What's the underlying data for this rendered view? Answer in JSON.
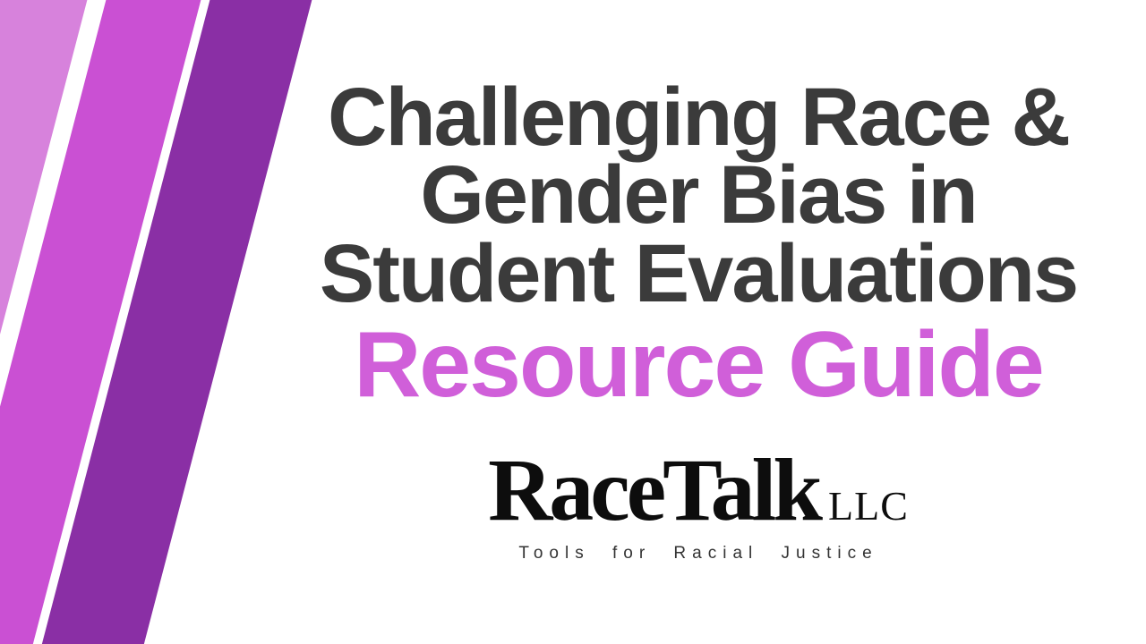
{
  "title": {
    "line1": "Challenging Race &",
    "line2": "Gender Bias in",
    "line3": "Student Evaluations",
    "subtitle": "Resource Guide"
  },
  "logo": {
    "brand": "RaceTalk",
    "suffix": "LLC",
    "tagline": "Tools for Racial Justice"
  },
  "colors": {
    "background": "#ffffff",
    "stripe_light": "#d782dc",
    "stripe_mid": "#ca50d3",
    "stripe_dark": "#8a2fa5",
    "title_text": "#3b3b3b",
    "subtitle_text": "#d05fd9",
    "logo_text": "#0d0d0d",
    "tagline_text": "#333333"
  }
}
